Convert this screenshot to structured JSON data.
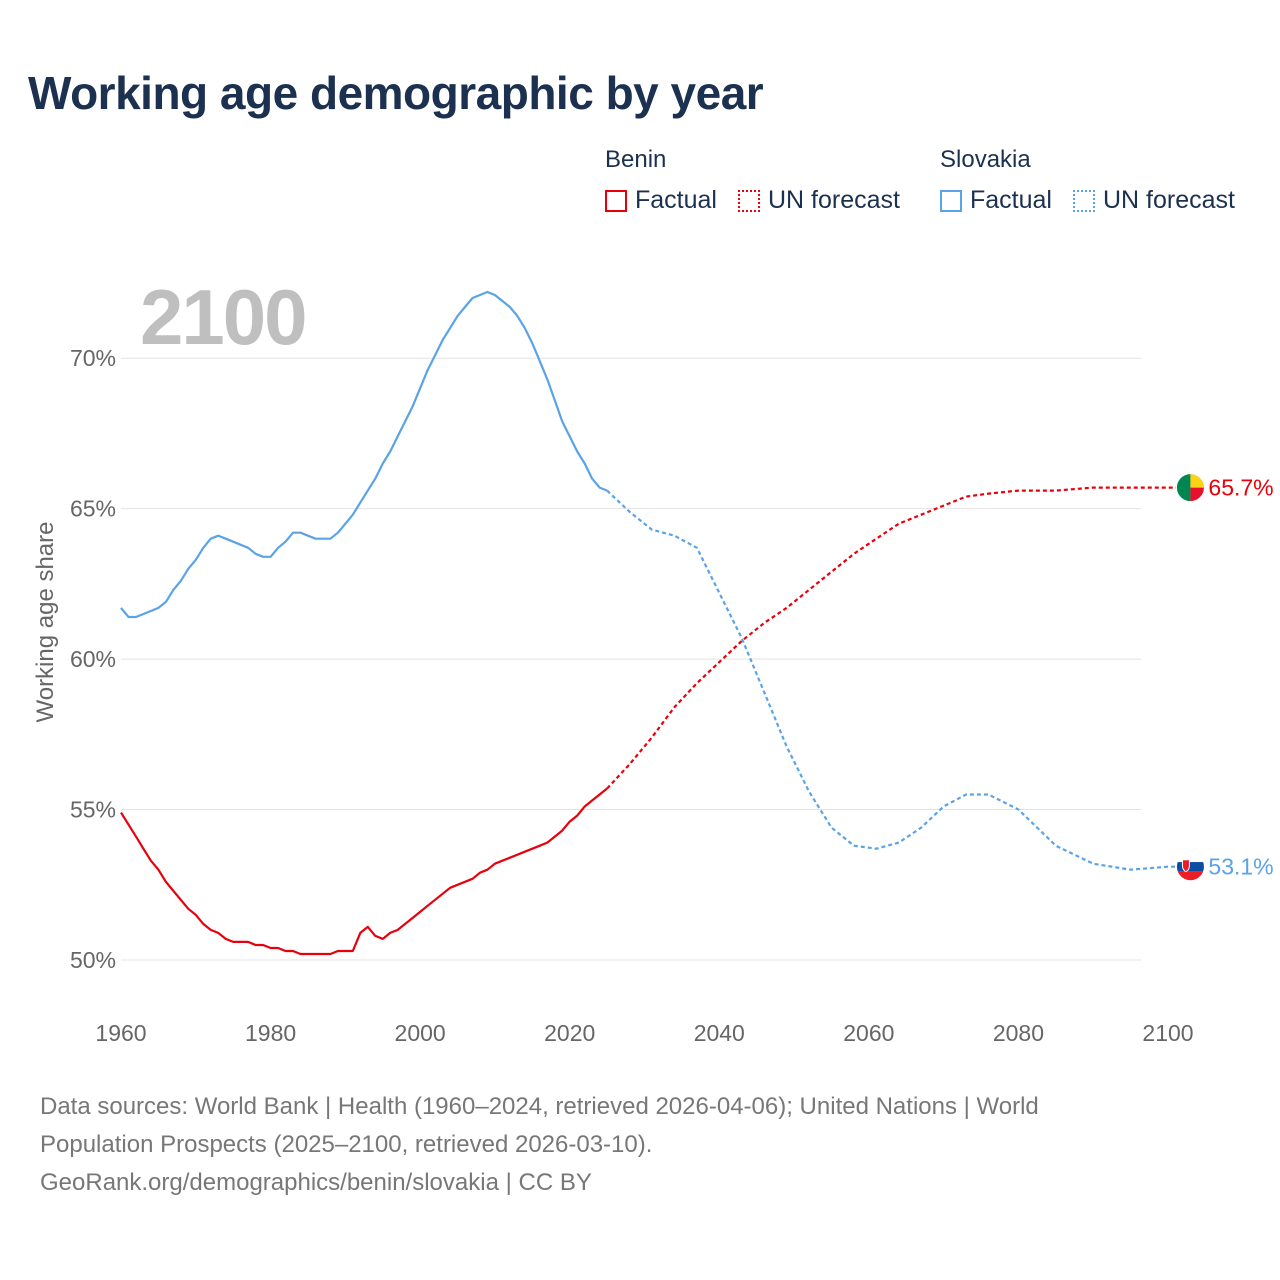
{
  "chart_data": {
    "type": "line",
    "title": "Working age demographic by year",
    "current_year_label": "2100",
    "xlabel": "",
    "ylabel": "Working age share",
    "xlim": [
      1960,
      2100
    ],
    "ylim": [
      49,
      72.5
    ],
    "x_ticks": [
      1960,
      1980,
      2000,
      2020,
      2040,
      2060,
      2080,
      2100
    ],
    "x_tick_labels": [
      "1960",
      "1980",
      "2000",
      "2020",
      "2040",
      "2060",
      "2080",
      "2100"
    ],
    "y_ticks": [
      50,
      55,
      60,
      65,
      70
    ],
    "y_tick_labels": [
      "50%",
      "55%",
      "60%",
      "65%",
      "70%"
    ],
    "grid": true,
    "legend": {
      "groups": [
        {
          "country": "Benin",
          "items": [
            "Factual",
            "UN forecast"
          ]
        },
        {
          "country": "Slovakia",
          "items": [
            "Factual",
            "UN forecast"
          ]
        }
      ],
      "placement": "top-right"
    },
    "series": [
      {
        "name": "Benin",
        "color": "#e8000b",
        "end_label": "65.7%",
        "flag_colors": [
          "#008751",
          "#fcd116",
          "#e8112d"
        ],
        "factual": {
          "x": [
            1960,
            1961,
            1962,
            1963,
            1964,
            1965,
            1966,
            1967,
            1968,
            1969,
            1970,
            1971,
            1972,
            1973,
            1974,
            1975,
            1976,
            1977,
            1978,
            1979,
            1980,
            1981,
            1982,
            1983,
            1984,
            1985,
            1986,
            1987,
            1988,
            1989,
            1990,
            1991,
            1992,
            1993,
            1994,
            1995,
            1996,
            1997,
            1998,
            1999,
            2000,
            2001,
            2002,
            2003,
            2004,
            2005,
            2006,
            2007,
            2008,
            2009,
            2010,
            2011,
            2012,
            2013,
            2014,
            2015,
            2016,
            2017,
            2018,
            2019,
            2020,
            2021,
            2022,
            2023,
            2024,
            2025
          ],
          "values": [
            54.9,
            54.5,
            54.1,
            53.7,
            53.3,
            53.0,
            52.6,
            52.3,
            52.0,
            51.7,
            51.5,
            51.2,
            51.0,
            50.9,
            50.7,
            50.6,
            50.6,
            50.6,
            50.5,
            50.5,
            50.4,
            50.4,
            50.3,
            50.3,
            50.2,
            50.2,
            50.2,
            50.2,
            50.2,
            50.3,
            50.3,
            50.3,
            50.9,
            51.1,
            50.8,
            50.7,
            50.9,
            51.0,
            51.2,
            51.4,
            51.6,
            51.8,
            52.0,
            52.2,
            52.4,
            52.5,
            52.6,
            52.7,
            52.9,
            53.0,
            53.2,
            53.3,
            53.4,
            53.5,
            53.6,
            53.7,
            53.8,
            53.9,
            54.1,
            54.3,
            54.6,
            54.8,
            55.1,
            55.3,
            55.5,
            55.7
          ]
        },
        "forecast": {
          "x": [
            2025,
            2028,
            2031,
            2034,
            2037,
            2040,
            2043,
            2046,
            2049,
            2052,
            2055,
            2058,
            2061,
            2064,
            2067,
            2070,
            2073,
            2076,
            2080,
            2085,
            2090,
            2095,
            2100,
            2103
          ],
          "values": [
            55.7,
            56.5,
            57.4,
            58.4,
            59.2,
            59.9,
            60.6,
            61.2,
            61.7,
            62.3,
            62.9,
            63.5,
            64.0,
            64.5,
            64.8,
            65.1,
            65.4,
            65.5,
            65.6,
            65.6,
            65.7,
            65.7,
            65.7,
            65.7
          ]
        }
      },
      {
        "name": "Slovakia",
        "color": "#5aa3e6",
        "end_label": "53.1%",
        "flag_colors": [
          "#ffffff",
          "#0b4ea2",
          "#ee1c25"
        ],
        "factual": {
          "x": [
            1960,
            1961,
            1962,
            1963,
            1964,
            1965,
            1966,
            1967,
            1968,
            1969,
            1970,
            1971,
            1972,
            1973,
            1974,
            1975,
            1976,
            1977,
            1978,
            1979,
            1980,
            1981,
            1982,
            1983,
            1984,
            1985,
            1986,
            1987,
            1988,
            1989,
            1990,
            1991,
            1992,
            1993,
            1994,
            1995,
            1996,
            1997,
            1998,
            1999,
            2000,
            2001,
            2002,
            2003,
            2004,
            2005,
            2006,
            2007,
            2008,
            2009,
            2010,
            2011,
            2012,
            2013,
            2014,
            2015,
            2016,
            2017,
            2018,
            2019,
            2020,
            2021,
            2022,
            2023,
            2024,
            2025
          ],
          "values": [
            61.7,
            61.4,
            61.4,
            61.5,
            61.6,
            61.7,
            61.9,
            62.3,
            62.6,
            63.0,
            63.3,
            63.7,
            64.0,
            64.1,
            64.0,
            63.9,
            63.8,
            63.7,
            63.5,
            63.4,
            63.4,
            63.7,
            63.9,
            64.2,
            64.2,
            64.1,
            64.0,
            64.0,
            64.0,
            64.2,
            64.5,
            64.8,
            65.2,
            65.6,
            66.0,
            66.5,
            66.9,
            67.4,
            67.9,
            68.4,
            69.0,
            69.6,
            70.1,
            70.6,
            71.0,
            71.4,
            71.7,
            72.0,
            72.1,
            72.2,
            72.1,
            71.9,
            71.7,
            71.4,
            71.0,
            70.5,
            69.9,
            69.3,
            68.6,
            67.9,
            67.4,
            66.9,
            66.5,
            66.0,
            65.7,
            65.6
          ]
        },
        "forecast": {
          "x": [
            2025,
            2028,
            2031,
            2034,
            2037,
            2040,
            2043,
            2046,
            2049,
            2052,
            2055,
            2058,
            2061,
            2064,
            2067,
            2070,
            2073,
            2076,
            2080,
            2085,
            2090,
            2095,
            2100,
            2103
          ],
          "values": [
            65.6,
            64.9,
            64.3,
            64.1,
            63.7,
            62.2,
            60.7,
            58.9,
            57.1,
            55.6,
            54.4,
            53.8,
            53.7,
            53.9,
            54.4,
            55.1,
            55.5,
            55.5,
            55.0,
            53.8,
            53.2,
            53.0,
            53.1,
            53.1
          ]
        }
      }
    ]
  },
  "footer": {
    "line1": "Data sources: World Bank | Health (1960–2024, retrieved 2026-04-06); United Nations | World",
    "line2": "Population Prospects (2025–2100, retrieved 2026-03-10).",
    "line3": "GeoRank.org/demographics/benin/slovakia | CC BY"
  }
}
